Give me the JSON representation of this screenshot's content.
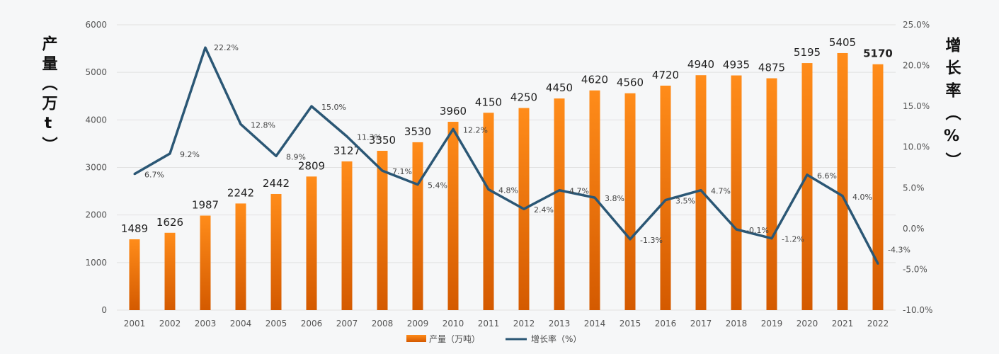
{
  "chart_data": {
    "type": "bar",
    "years": [
      "2001",
      "2002",
      "2003",
      "2004",
      "2005",
      "2006",
      "2007",
      "2008",
      "2009",
      "2010",
      "2011",
      "2012",
      "2013",
      "2014",
      "2015",
      "2016",
      "2017",
      "2018",
      "2019",
      "2020",
      "2021",
      "2022"
    ],
    "series": [
      {
        "name": "产量（万吨）",
        "type": "bar",
        "axis": "left",
        "values": [
          1489,
          1626,
          1987,
          2242,
          2442,
          2809,
          3127,
          3350,
          3530,
          3960,
          4150,
          4250,
          4450,
          4620,
          4560,
          4720,
          4940,
          4935,
          4875,
          5195,
          5405,
          5170
        ],
        "labels": [
          "1489",
          "1626",
          "1987",
          "2242",
          "2442",
          "2809",
          "3127",
          "3350",
          "3530",
          "3960",
          "4150",
          "4250",
          "4450",
          "4620",
          "4560",
          "4720",
          "4940",
          "4935",
          "4875",
          "5195",
          "5405",
          "5170"
        ],
        "highlight_last": true
      },
      {
        "name": "增长率（%）",
        "type": "line",
        "axis": "right",
        "values": [
          6.7,
          9.2,
          22.2,
          12.8,
          8.9,
          15.0,
          11.3,
          7.1,
          5.4,
          12.2,
          4.8,
          2.4,
          4.7,
          3.8,
          -1.3,
          3.5,
          4.7,
          -0.1,
          -1.2,
          6.6,
          4.0,
          -4.3
        ],
        "labels": [
          "6.7%",
          "9.2%",
          "22.2%",
          "12.8%",
          "8.9%",
          "15.0%",
          "11.3%",
          "7.1%",
          "5.4%",
          "12.2%",
          "4.8%",
          "2.4%",
          "4.7%",
          "3.8%",
          "-1.3%",
          "3.5%",
          "4.7%",
          "-0.1%",
          "-1.2%",
          "6.6%",
          "4.0%",
          "-4.3%"
        ],
        "highlight_last": true
      }
    ],
    "ylabel_left": "产量（万t）",
    "ylabel_right": "增长率（%）",
    "ylim_left": [
      0,
      6000
    ],
    "yticks_left": [
      "0",
      "1000",
      "2000",
      "3000",
      "4000",
      "5000",
      "6000"
    ],
    "ylim_right": [
      -10,
      25
    ],
    "yticks_right": [
      "-10.0%",
      "-5.0%",
      "0.0%",
      "5.0%",
      "10.0%",
      "15.0%",
      "20.0%",
      "25.0%"
    ],
    "legend_position": "bottom-center",
    "grid": true
  },
  "colors": {
    "bar_top": "#ff8c1a",
    "bar_bottom": "#d45a00",
    "line": "#2b5775",
    "highlight": "#e31b1b",
    "grid": "#e1e1e1"
  }
}
